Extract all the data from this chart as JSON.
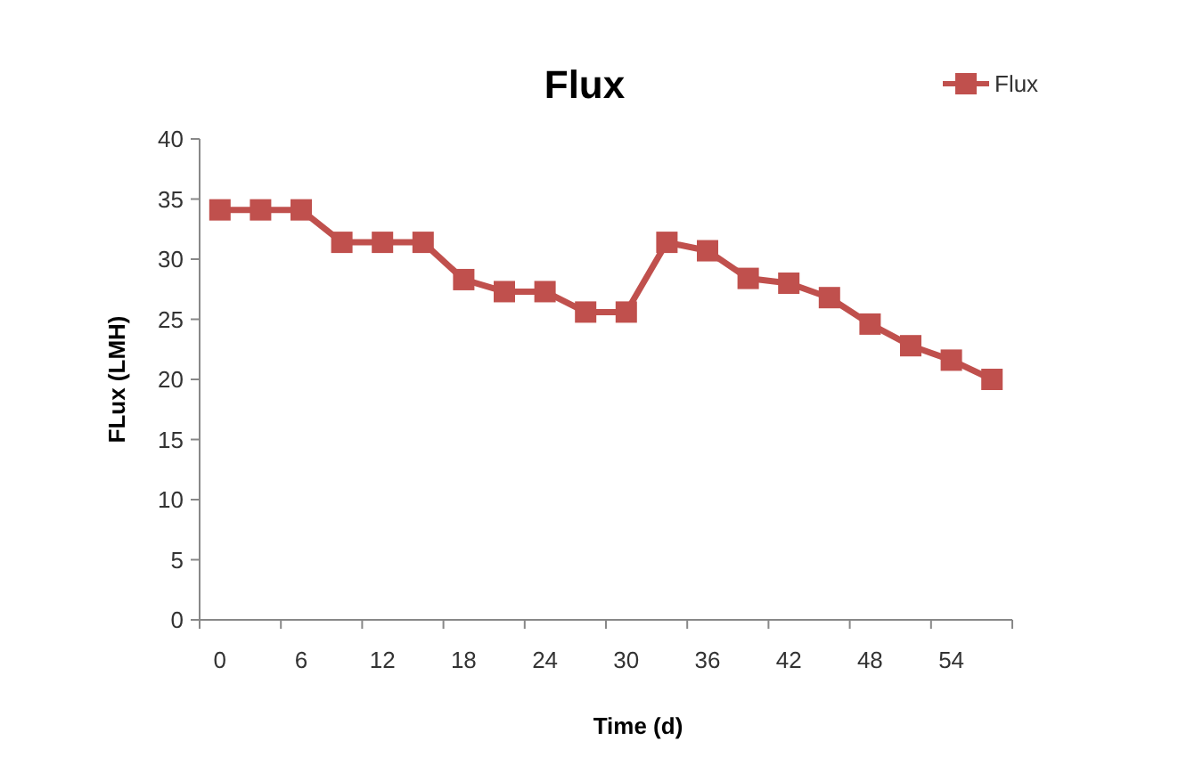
{
  "chart_data": {
    "type": "line",
    "title": "Flux",
    "xlabel": "Time (d)",
    "ylabel": "FLux (LMH)",
    "categories": [
      "0",
      null,
      "6",
      null,
      "12",
      null,
      "18",
      null,
      "24",
      null,
      "30",
      null,
      "36",
      null,
      "42",
      null,
      "48",
      null,
      "54",
      null
    ],
    "series": [
      {
        "name": "Flux",
        "color": "#c0504d",
        "values": [
          34.1,
          34.1,
          34.1,
          31.4,
          31.4,
          31.4,
          28.3,
          27.3,
          27.3,
          25.6,
          25.6,
          31.4,
          30.7,
          28.4,
          28.0,
          26.8,
          24.6,
          22.8,
          21.6,
          20.0
        ]
      }
    ],
    "ylim": [
      0,
      40
    ],
    "yticks": [
      0,
      5,
      10,
      15,
      20,
      25,
      30,
      35,
      40
    ],
    "grid": false,
    "legend": "top right",
    "marker": "square",
    "line_style": "solid"
  }
}
